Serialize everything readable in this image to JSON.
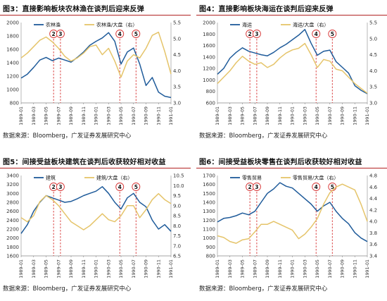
{
  "colors": {
    "index_line": "#1f5b9a",
    "ratio_line": "#e5c46a",
    "event_line": "#d63030",
    "title_rule": "#b22222"
  },
  "panels": [
    {
      "title": "图3：直接影响板块农林渔在谈判后迎来反弹",
      "source": "数据来源：Bloomberg，广发证券发展研究中心"
    },
    {
      "title": "图4：直接影响板块海运在谈判后迎来反弹",
      "source": "数据来源：Bloomberg，广发证券发展研究中心"
    },
    {
      "title": "图5：间接受益板块建筑在谈判后收获较好相对收益",
      "source": "数据来源：Bloomberg，广发证券发展研究中心"
    },
    {
      "title": "图6：间接受益板块零售在谈判后收获较好相对收益",
      "source": "数据来源：Bloomberg，广发证券发展研究中心"
    }
  ],
  "chart_data": [
    {
      "type": "line",
      "x_ticks": [
        "1989-01",
        "1989-03",
        "1989-05",
        "1989-07",
        "1989-09",
        "1989-11",
        "1990-01",
        "1990-03",
        "1990-05",
        "1990-07",
        "1990-09",
        "1990-11",
        "1991-01"
      ],
      "left_axis": {
        "ticks": [
          800,
          1000,
          1200,
          1400,
          1600,
          1800,
          2000
        ],
        "ylim": [
          800,
          2000
        ]
      },
      "right_axis": {
        "ticks": [
          3.0,
          3.5,
          4.0,
          4.5,
          5.0,
          5.5
        ],
        "ylim": [
          3.0,
          5.5
        ]
      },
      "grid": false,
      "legend_position": "top-center",
      "series": [
        {
          "name": "农林渔",
          "axis": "left",
          "x": [
            0,
            0.5,
            1,
            1.5,
            2,
            2.5,
            3,
            3.5,
            4,
            4.5,
            5,
            5.5,
            6,
            6.5,
            7,
            7.5,
            8,
            8.5,
            9,
            9.5,
            10,
            10.5,
            11,
            11.5,
            12
          ],
          "values": [
            1170,
            1230,
            1330,
            1440,
            1480,
            1430,
            1470,
            1440,
            1410,
            1480,
            1560,
            1660,
            1720,
            1770,
            1850,
            1720,
            1380,
            1560,
            1620,
            1380,
            1060,
            1180,
            960,
            900,
            880
          ]
        },
        {
          "name": "农林渔/大盘（右）",
          "axis": "right",
          "x": [
            0,
            0.5,
            1,
            1.5,
            2,
            2.5,
            3,
            3.5,
            4,
            4.5,
            5,
            5.5,
            6,
            6.5,
            7,
            7.5,
            8,
            8.5,
            9,
            9.5,
            10,
            10.5,
            11,
            11.5,
            12
          ],
          "values": [
            4.4,
            4.55,
            4.75,
            4.95,
            5.05,
            4.9,
            4.7,
            4.45,
            4.3,
            4.4,
            4.55,
            4.75,
            4.8,
            4.5,
            4.7,
            4.3,
            3.8,
            4.3,
            4.5,
            4.4,
            4.7,
            5.1,
            5.2,
            4.6,
            3.9
          ]
        }
      ],
      "event_markers": [
        {
          "label": "2",
          "x": 2.6
        },
        {
          "label": "3",
          "x": 3.15
        },
        {
          "label": "4",
          "x": 7.9
        },
        {
          "label": "5",
          "x": 9.2
        }
      ]
    },
    {
      "type": "line",
      "x_ticks": [
        "1989-01",
        "1989-03",
        "1989-05",
        "1989-07",
        "1989-09",
        "1989-11",
        "1990-01",
        "1990-03",
        "1990-05",
        "1990-07",
        "1990-09",
        "1990-11",
        "1991-01"
      ],
      "left_axis": {
        "ticks": [
          600,
          800,
          1000,
          1200,
          1400,
          1600,
          1800,
          2000
        ],
        "ylim": [
          600,
          2000
        ]
      },
      "right_axis": {
        "ticks": [
          3.0,
          3.5,
          4.0,
          4.5,
          5.0,
          5.5
        ],
        "ylim": [
          3.0,
          5.5
        ]
      },
      "grid": false,
      "legend_position": "top-center",
      "series": [
        {
          "name": "海运",
          "axis": "left",
          "x": [
            0,
            0.5,
            1,
            1.5,
            2,
            2.5,
            3,
            3.5,
            4,
            4.5,
            5,
            5.5,
            6,
            6.5,
            7,
            7.5,
            8,
            8.5,
            9,
            9.5,
            10,
            10.5,
            11,
            11.5,
            12
          ],
          "values": [
            1100,
            1200,
            1380,
            1480,
            1560,
            1500,
            1470,
            1440,
            1420,
            1480,
            1560,
            1620,
            1700,
            1780,
            1880,
            1640,
            1430,
            1500,
            1520,
            1320,
            1220,
            1120,
            900,
            820,
            760
          ]
        },
        {
          "name": "海运/大盘（右）",
          "axis": "right",
          "x": [
            0,
            0.5,
            1,
            1.5,
            2,
            2.5,
            3,
            3.5,
            4,
            4.5,
            5,
            5.5,
            6,
            6.5,
            7,
            7.5,
            8,
            8.5,
            9,
            9.5,
            10,
            10.5,
            11,
            11.5,
            12
          ],
          "values": [
            3.6,
            3.8,
            4.0,
            4.25,
            4.45,
            4.3,
            4.2,
            4.25,
            4.1,
            4.2,
            4.4,
            4.55,
            4.65,
            4.7,
            4.85,
            4.5,
            4.1,
            4.35,
            4.3,
            4.05,
            4.0,
            3.8,
            3.6,
            3.45,
            3.3
          ]
        }
      ],
      "event_markers": [
        {
          "label": "2",
          "x": 2.6
        },
        {
          "label": "3",
          "x": 3.15
        },
        {
          "label": "4",
          "x": 7.9
        },
        {
          "label": "5",
          "x": 9.2
        }
      ]
    },
    {
      "type": "line",
      "x_ticks": [
        "1989-01",
        "1989-03",
        "1989-05",
        "1989-07",
        "1989-09",
        "1989-11",
        "1990-01",
        "1990-03",
        "1990-05",
        "1990-07",
        "1990-09",
        "1990-11",
        "1991-01"
      ],
      "left_axis": {
        "ticks": [
          1600,
          1800,
          2000,
          2200,
          2400,
          2600,
          2800,
          3000,
          3200,
          3400
        ],
        "ylim": [
          1600,
          3400
        ]
      },
      "right_axis": {
        "ticks": [
          6.5,
          7.0,
          7.5,
          8.0,
          8.5,
          9.0,
          9.5,
          10.0,
          10.5
        ],
        "ylim": [
          6.5,
          10.5
        ]
      },
      "grid": false,
      "legend_position": "top-center",
      "series": [
        {
          "name": "建筑",
          "axis": "left",
          "x": [
            0,
            0.5,
            1,
            1.5,
            2,
            2.5,
            3,
            3.5,
            4,
            4.5,
            5,
            5.5,
            6,
            6.5,
            7,
            7.5,
            8,
            8.5,
            9,
            9.5,
            10,
            10.5,
            11,
            11.5,
            12
          ],
          "values": [
            2100,
            2300,
            2600,
            2800,
            2950,
            2900,
            2850,
            2800,
            2820,
            2880,
            2950,
            3000,
            3050,
            3150,
            3000,
            2800,
            2650,
            2900,
            3000,
            2800,
            2700,
            2400,
            2200,
            2300,
            2150
          ]
        },
        {
          "name": "建筑/大盘（右）",
          "axis": "right",
          "x": [
            0,
            0.5,
            1,
            1.5,
            2,
            2.5,
            3,
            3.5,
            4,
            4.5,
            5,
            5.5,
            6,
            6.5,
            7,
            7.5,
            8,
            8.5,
            9,
            9.5,
            10,
            10.5,
            11,
            11.5,
            12
          ],
          "values": [
            8.4,
            8.2,
            8.5,
            9.2,
            9.5,
            9.3,
            9.0,
            8.6,
            8.2,
            8.0,
            7.8,
            8.0,
            8.3,
            8.6,
            8.3,
            8.2,
            8.5,
            9.0,
            9.0,
            8.4,
            8.8,
            9.3,
            9.6,
            9.3,
            9.1
          ]
        }
      ],
      "event_markers": [
        {
          "label": "2",
          "x": 2.6
        },
        {
          "label": "3",
          "x": 3.15
        },
        {
          "label": "4",
          "x": 7.9
        },
        {
          "label": "5",
          "x": 9.2
        }
      ]
    },
    {
      "type": "line",
      "x_ticks": [
        "1989-01",
        "1989-03",
        "1989-05",
        "1989-07",
        "1989-09",
        "1989-11",
        "1990-01",
        "1990-03",
        "1990-05",
        "1990-07",
        "1990-09",
        "1990-11",
        "1991-01"
      ],
      "left_axis": {
        "ticks": [
          800,
          900,
          1000,
          1100,
          1200,
          1300,
          1400,
          1500,
          1600,
          1700
        ],
        "ylim": [
          800,
          1700
        ]
      },
      "right_axis": {
        "ticks": [
          3.4,
          3.6,
          3.8,
          4.0,
          4.2,
          4.4,
          4.6,
          4.8
        ],
        "ylim": [
          3.4,
          4.8
        ]
      },
      "grid": false,
      "legend_position": "top-center",
      "series": [
        {
          "name": "零售贸易",
          "axis": "left",
          "x": [
            0,
            0.5,
            1,
            1.5,
            2,
            2.5,
            3,
            3.5,
            4,
            4.5,
            5,
            5.5,
            6,
            6.5,
            7,
            7.5,
            8,
            8.5,
            9,
            9.5,
            10,
            10.5,
            11,
            11.5,
            12
          ],
          "values": [
            1180,
            1220,
            1230,
            1250,
            1280,
            1260,
            1300,
            1400,
            1500,
            1550,
            1620,
            1580,
            1560,
            1500,
            1440,
            1380,
            1300,
            1360,
            1400,
            1300,
            1220,
            1160,
            1060,
            1000,
            960
          ]
        },
        {
          "name": "零售贸易/大盘（右）",
          "axis": "right",
          "x": [
            0,
            0.5,
            1,
            1.5,
            2,
            2.5,
            3,
            3.5,
            4,
            4.5,
            5,
            5.5,
            6,
            6.5,
            7,
            7.5,
            8,
            8.5,
            9,
            9.5,
            10,
            10.5,
            11,
            11.5,
            12
          ],
          "values": [
            3.75,
            3.72,
            3.65,
            3.62,
            3.68,
            3.7,
            3.82,
            3.95,
            3.95,
            4.0,
            3.95,
            3.9,
            3.85,
            3.7,
            3.78,
            3.9,
            4.05,
            4.3,
            4.5,
            4.6,
            4.65,
            4.6,
            4.55,
            4.3,
            4.0
          ]
        }
      ],
      "event_markers": [
        {
          "label": "2",
          "x": 2.6
        },
        {
          "label": "3",
          "x": 3.15
        },
        {
          "label": "4",
          "x": 7.9
        },
        {
          "label": "5",
          "x": 9.2
        }
      ]
    }
  ]
}
